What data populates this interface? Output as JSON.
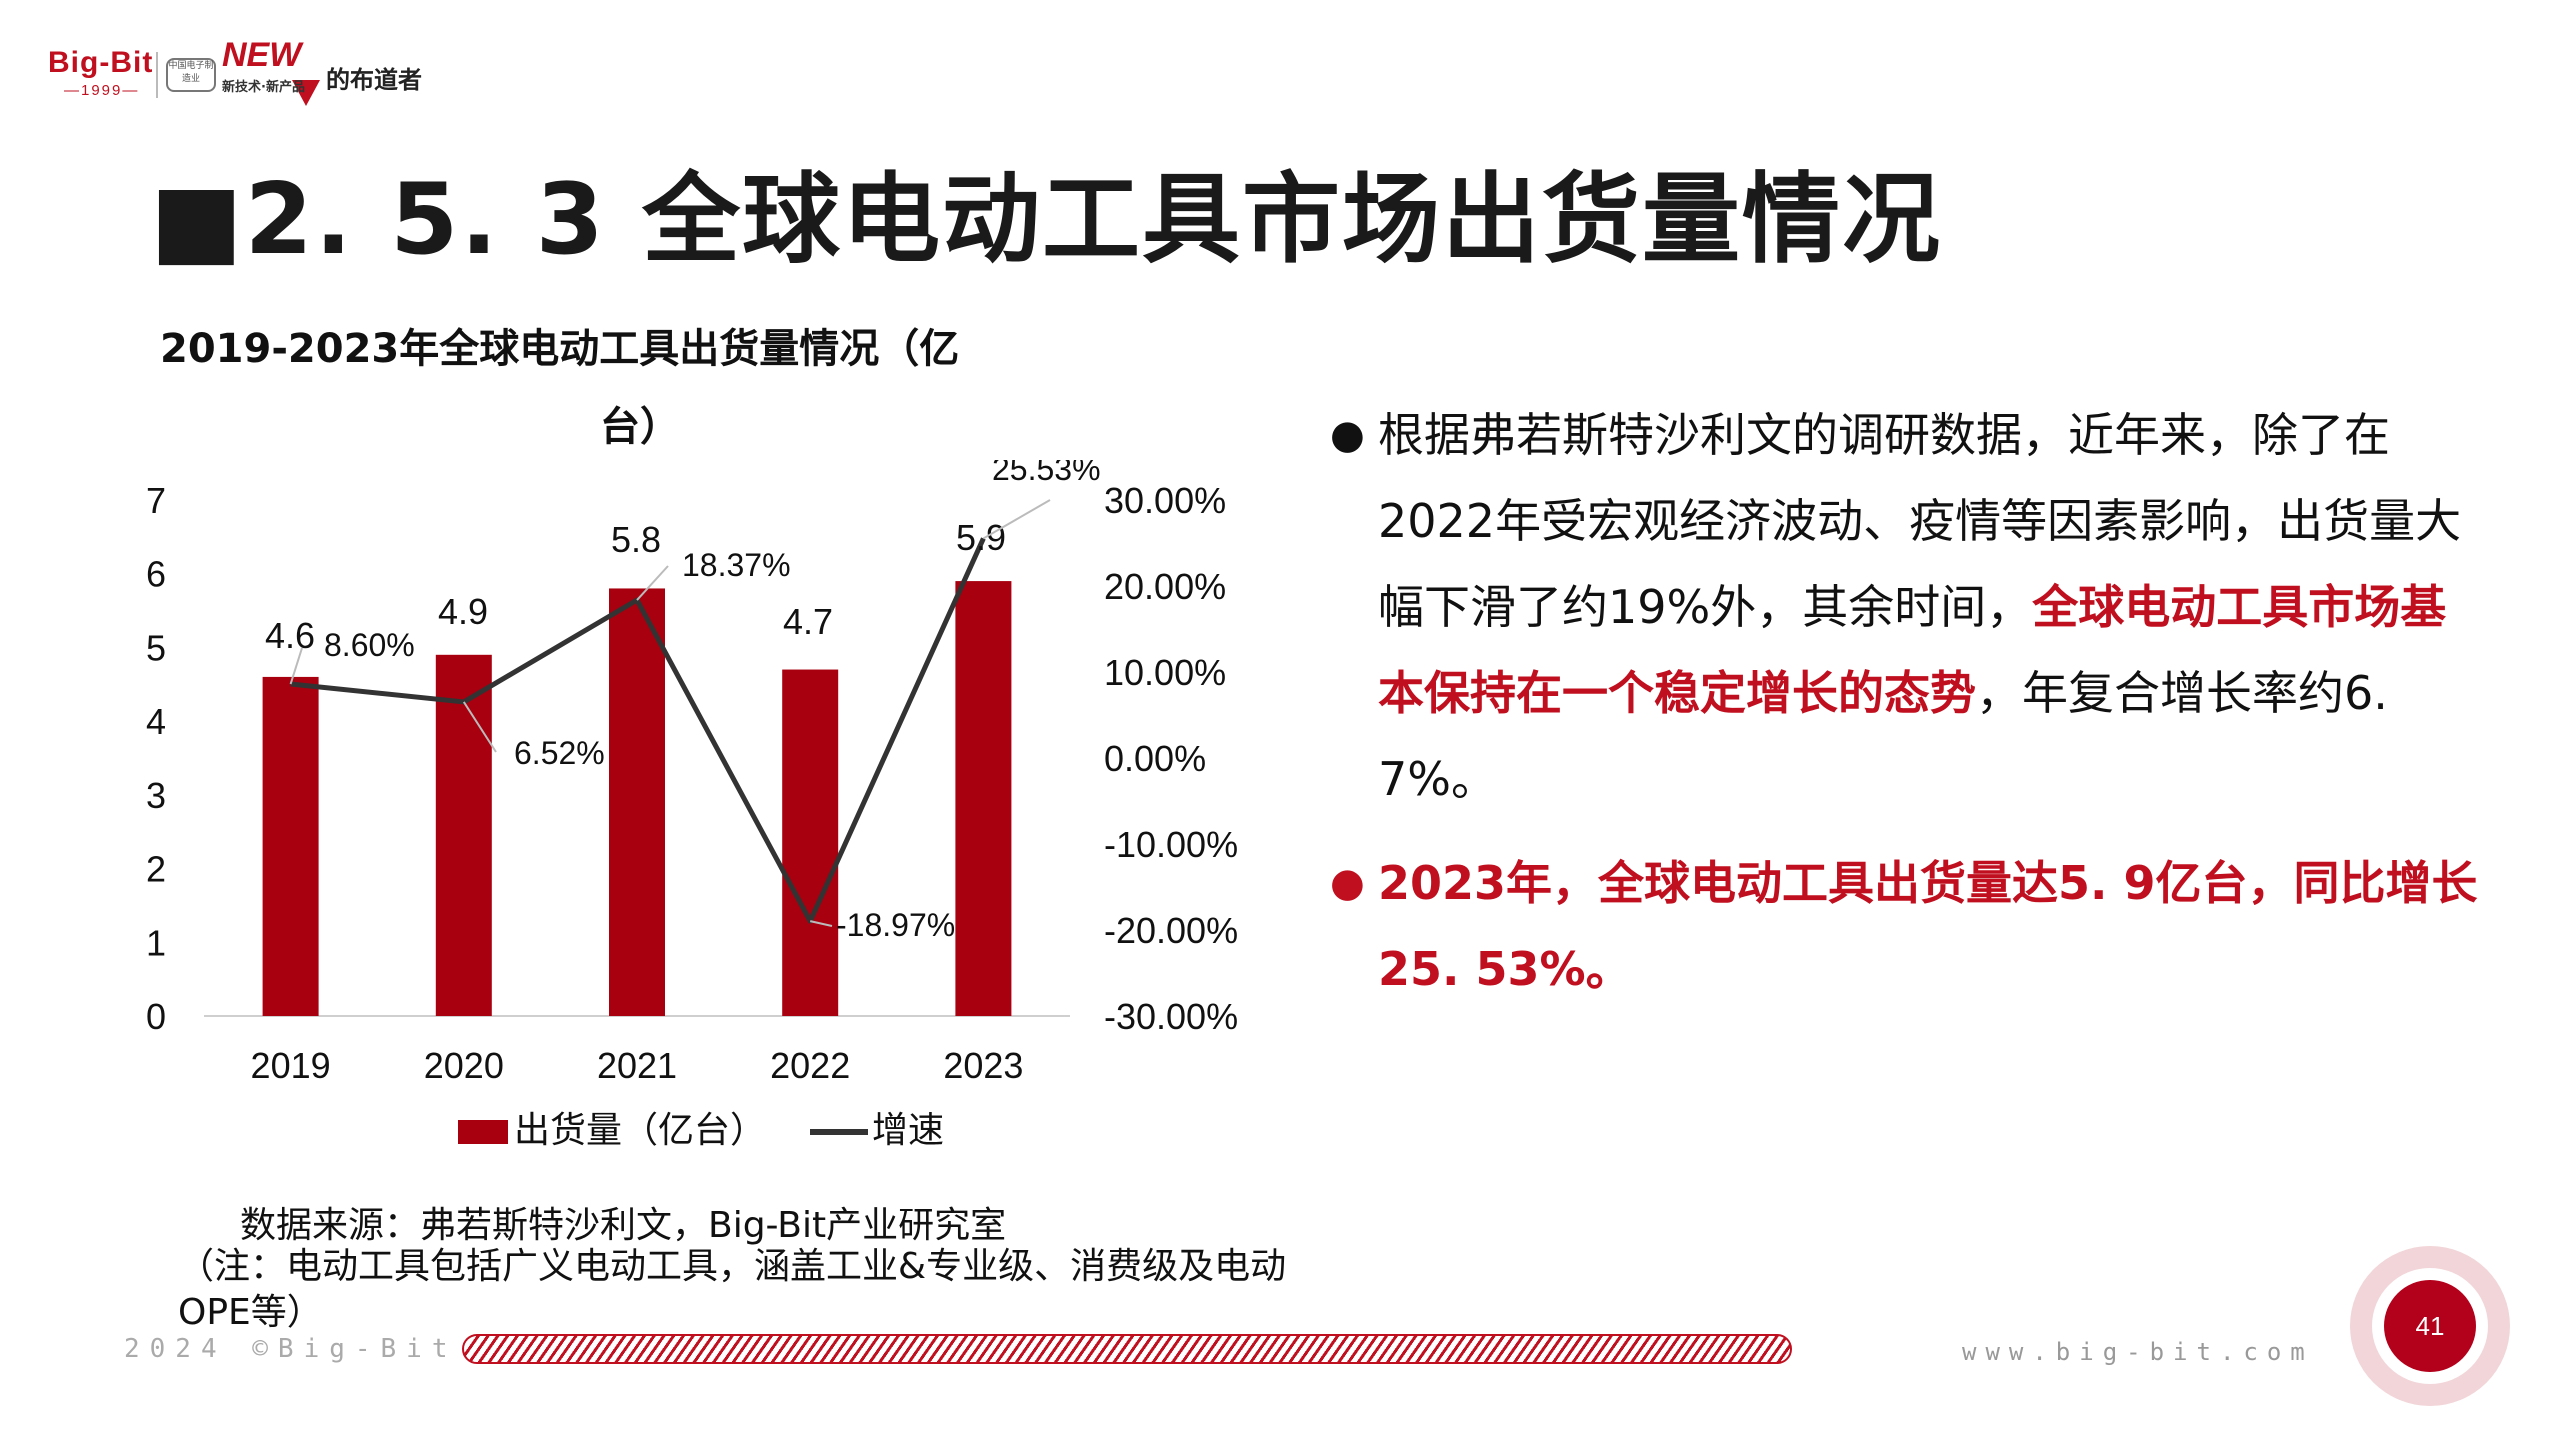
{
  "header": {
    "logo_brand": "Big-Bit",
    "logo_year": "—1999—",
    "logo_box_text": "中国电子制造业",
    "logo_new": "NEW",
    "logo_new_sub": "新技术·新产品",
    "logo_slogan": "的布道者"
  },
  "page": {
    "title": "■2. 5. 3 全球电动工具市场出货量情况",
    "page_number": "41"
  },
  "chart_title": {
    "line1": "2019-2023年全球电动工具出货量情况（亿",
    "line2": "台）"
  },
  "chart_data": {
    "type": "bar",
    "title": "2019-2023年全球电动工具出货量情况（亿台）",
    "categories": [
      "2019",
      "2020",
      "2021",
      "2022",
      "2023"
    ],
    "series": [
      {
        "name": "出货量（亿台）",
        "type": "bar",
        "axis": "left",
        "values": [
          4.6,
          4.9,
          5.8,
          4.7,
          5.9
        ],
        "labels": [
          "4.6",
          "4.9",
          "5.8",
          "4.7",
          "5.9"
        ],
        "color": "#a8000f"
      },
      {
        "name": "增速",
        "type": "line",
        "axis": "right",
        "values": [
          8.6,
          6.52,
          18.37,
          -18.97,
          25.53
        ],
        "labels": [
          "8.60%",
          "6.52%",
          "18.37%",
          "-18.97%",
          "25.53%"
        ],
        "color": "#333333"
      }
    ],
    "left_axis": {
      "range": [
        0,
        7
      ],
      "ticks": [
        "0",
        "1",
        "2",
        "3",
        "4",
        "5",
        "6",
        "7"
      ]
    },
    "right_axis": {
      "range": [
        -30,
        30
      ],
      "ticks": [
        "-30.00%",
        "-20.00%",
        "-10.00%",
        "0.00%",
        "10.00%",
        "20.00%",
        "30.00%"
      ]
    },
    "legend": {
      "placement": "bottom",
      "items": [
        "出货量（亿台）",
        "增速"
      ]
    },
    "grid": false
  },
  "bullets": [
    {
      "text_before": "根据弗若斯特沙利文的调研数据，近年来，除了在2022年受宏观经济波动、疫情等因素影响，出货量大幅下滑了约19%外，其余时间，",
      "highlight": "全球电动工具市场基本保持在一个稳定增长的态势",
      "text_after": "，年复合增长率约6. 7%。"
    },
    {
      "text": "2023年，全球电动工具出货量达5. 9亿台，同比增长25. 53%。"
    }
  ],
  "source": {
    "line1": "数据来源：弗若斯特沙利文，Big-Bit产业研究室",
    "line2": "（注：电动工具包括广义电动工具，涵盖工业&专业级、消费级及电动OPE等）"
  },
  "footer": {
    "left": "2024 ©Big-Bit",
    "right": "www.big-bit.com"
  },
  "colors": {
    "accent": "#c0101f",
    "bar": "#a8000f",
    "line": "#333333"
  }
}
